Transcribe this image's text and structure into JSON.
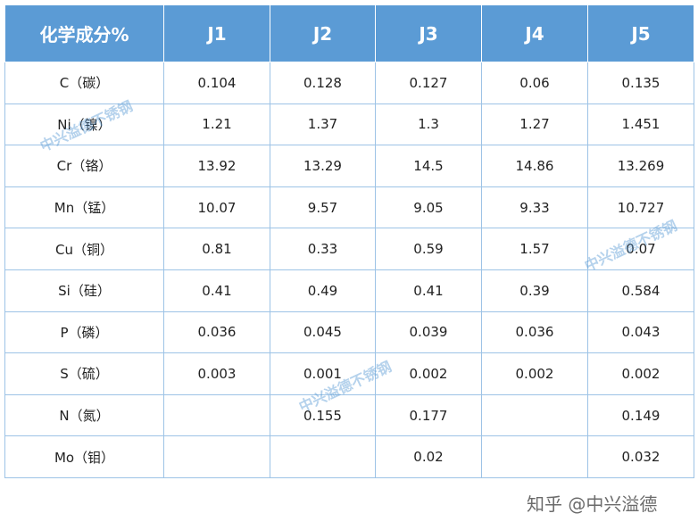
{
  "table": {
    "header": [
      "化学成分%",
      "J1",
      "J2",
      "J3",
      "J4",
      "J5"
    ],
    "rows": [
      [
        "C（碳）",
        "0.104",
        "0.128",
        "0.127",
        "0.06",
        "0.135"
      ],
      [
        "Ni（镍）",
        "1.21",
        "1.37",
        "1.3",
        "1.27",
        "1.451"
      ],
      [
        "Cr（铬）",
        "13.92",
        "13.29",
        "14.5",
        "14.86",
        "13.269"
      ],
      [
        "Mn（锰）",
        "10.07",
        "9.57",
        "9.05",
        "9.33",
        "10.727"
      ],
      [
        "Cu（铜）",
        "0.81",
        "0.33",
        "0.59",
        "1.57",
        "0.07"
      ],
      [
        "Si（硅）",
        "0.41",
        "0.49",
        "0.41",
        "0.39",
        "0.584"
      ],
      [
        "P（磷）",
        "0.036",
        "0.045",
        "0.039",
        "0.036",
        "0.043"
      ],
      [
        "S（硫）",
        "0.003",
        "0.001",
        "0.002",
        "0.002",
        "0.002"
      ],
      [
        "N（氮）",
        null,
        "0.155",
        "0.177",
        null,
        "0.149"
      ],
      [
        "Mo（钼）",
        null,
        null,
        "0.02",
        null,
        "0.032"
      ]
    ]
  },
  "watermark": "中兴溢德不锈钢",
  "footer": "知乎 @中兴溢德"
}
